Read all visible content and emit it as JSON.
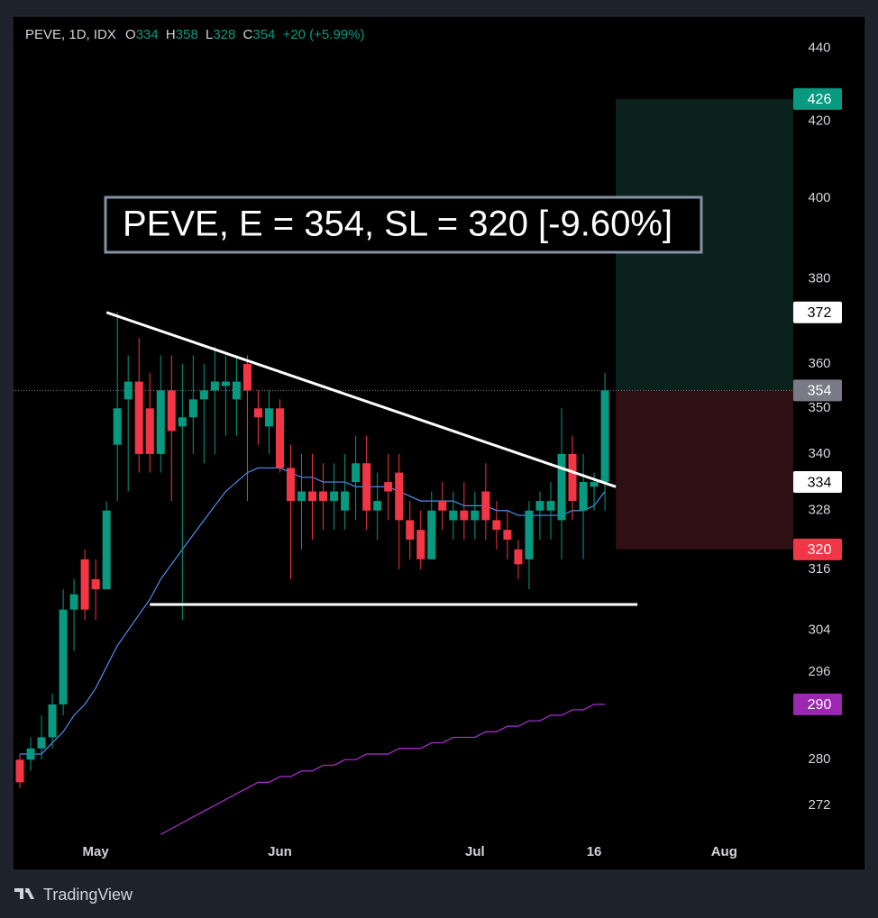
{
  "chart_data": {
    "type": "candlestick",
    "header": {
      "symbol": "PEVE, 1D, IDX",
      "ohlc_labels": [
        "O",
        "H",
        "L",
        "C"
      ],
      "change": "+20 (+5.99%)"
    },
    "annotation": "PEVE, E = 354, SL = 320 [-9.60%]",
    "categories": [
      null,
      null,
      null,
      null,
      null,
      null,
      null,
      "May",
      null,
      null,
      null,
      null,
      null,
      null,
      null,
      null,
      null,
      null,
      null,
      null,
      null,
      null,
      null,
      null,
      "Jun",
      null,
      null,
      null,
      null,
      null,
      null,
      null,
      null,
      null,
      null,
      null,
      null,
      null,
      null,
      null,
      null,
      null,
      "Jul",
      null,
      null,
      null,
      null,
      null,
      null,
      null,
      null,
      null,
      null,
      "16",
      null,
      null,
      null,
      null,
      null,
      null,
      null,
      null,
      null,
      null,
      null,
      "Aug"
    ],
    "open": [
      280,
      280,
      282,
      284,
      290,
      308,
      318,
      314,
      312,
      342,
      352,
      356,
      350,
      340,
      354,
      346,
      348,
      352,
      354,
      355,
      352,
      360,
      350,
      346,
      350,
      337,
      330,
      332,
      332,
      330,
      328,
      334,
      338,
      328,
      334,
      336,
      326,
      324,
      318,
      330,
      326,
      328,
      326,
      332,
      326,
      324,
      320,
      318,
      328,
      328,
      326,
      340,
      328,
      333,
      334,
      null,
      null,
      null,
      null,
      null,
      null,
      null,
      null,
      null,
      null,
      null
    ],
    "high": [
      281,
      284,
      288,
      292,
      312,
      314,
      320,
      318,
      330,
      372,
      362,
      366,
      358,
      362,
      362,
      360,
      362,
      360,
      364,
      362,
      362,
      362,
      354,
      354,
      352,
      342,
      340,
      340,
      338,
      338,
      340,
      344,
      344,
      336,
      340,
      340,
      330,
      328,
      332,
      334,
      332,
      334,
      332,
      338,
      330,
      328,
      322,
      330,
      332,
      334,
      350,
      344,
      340,
      336,
      358,
      null,
      null,
      null,
      null,
      null,
      null,
      null,
      null,
      null,
      null,
      null
    ],
    "low": [
      275,
      278,
      280,
      282,
      288,
      300,
      306,
      306,
      312,
      330,
      332,
      336,
      336,
      336,
      330,
      306,
      340,
      338,
      340,
      344,
      344,
      330,
      342,
      340,
      336,
      314,
      320,
      322,
      324,
      324,
      324,
      326,
      324,
      322,
      326,
      316,
      318,
      316,
      318,
      324,
      322,
      322,
      322,
      322,
      320,
      318,
      314,
      312,
      322,
      322,
      318,
      326,
      318,
      328,
      328,
      null,
      null,
      null,
      null,
      null,
      null,
      null,
      null,
      null,
      null,
      null
    ],
    "close": [
      276,
      282,
      284,
      290,
      308,
      311,
      308,
      312,
      328,
      350,
      356,
      340,
      340,
      354,
      345,
      348,
      352,
      354,
      356,
      356,
      356,
      354,
      348,
      350,
      337,
      330,
      332,
      330,
      330,
      332,
      332,
      338,
      328,
      330,
      332,
      326,
      322,
      318,
      328,
      328,
      328,
      326,
      328,
      326,
      324,
      322,
      317,
      328,
      330,
      330,
      340,
      330,
      334,
      334,
      354,
      null,
      null,
      null,
      null,
      null,
      null,
      null,
      null,
      null,
      null,
      null
    ],
    "up_color": "#089981",
    "down_color": "#f23645",
    "lines": [
      {
        "color": "#4f8ff0",
        "values": [
          281,
          281,
          281,
          283,
          285,
          288,
          290,
          293,
          297,
          301,
          304,
          307,
          310,
          314,
          317,
          320,
          323,
          326,
          329,
          332,
          334,
          336,
          337,
          337,
          337,
          336,
          335,
          335,
          334,
          334,
          334,
          333,
          333,
          333,
          333,
          332,
          331,
          330,
          330,
          330,
          330,
          329,
          329,
          329,
          328,
          328,
          327,
          327,
          327,
          327,
          327,
          328,
          328,
          329,
          332,
          null,
          null,
          null,
          null,
          null,
          null,
          null,
          null,
          null,
          null,
          null
        ]
      },
      {
        "color": "#b12fd6",
        "values": [
          null,
          null,
          null,
          null,
          null,
          null,
          null,
          null,
          null,
          null,
          null,
          null,
          null,
          267,
          268,
          269,
          270,
          271,
          272,
          273,
          274,
          275,
          276,
          276,
          277,
          277,
          278,
          278,
          279,
          279,
          280,
          280,
          281,
          281,
          281,
          282,
          282,
          282,
          283,
          283,
          284,
          284,
          284,
          285,
          285,
          286,
          286,
          287,
          287,
          288,
          288,
          289,
          289,
          290,
          290,
          null,
          null,
          null,
          null,
          null,
          null,
          null,
          null,
          null,
          null,
          null
        ]
      }
    ],
    "trendlines": [
      {
        "from": [
          8,
          372
        ],
        "to": [
          55,
          333
        ]
      },
      {
        "from": [
          12,
          309
        ],
        "to": [
          57,
          309
        ]
      }
    ],
    "position": {
      "target": 426,
      "entry": 354,
      "stop": 320,
      "profit_color": "#0a211d",
      "loss_color": "#2e0f13"
    },
    "price_labels": [
      {
        "value": 426,
        "color": "#089981",
        "text_color": "#ffffff"
      },
      {
        "value": 372,
        "color": "#ffffff",
        "text_color": "#000000"
      },
      {
        "value": 354,
        "color": "#787b86",
        "text_color": "#ffffff"
      },
      {
        "value": 334,
        "color": "#ffffff",
        "text_color": "#000000"
      },
      {
        "value": 320,
        "color": "#f23645",
        "text_color": "#ffffff"
      },
      {
        "value": 290,
        "color": "#9c27b0",
        "text_color": "#ffffff"
      }
    ],
    "ylim": [
      261,
      449
    ],
    "log_scale": true,
    "grid": false,
    "yticks": [
      440,
      420,
      400,
      380,
      360,
      350,
      340,
      328,
      316,
      304,
      296,
      280,
      272
    ]
  },
  "footer": {
    "brand": "TradingView"
  }
}
